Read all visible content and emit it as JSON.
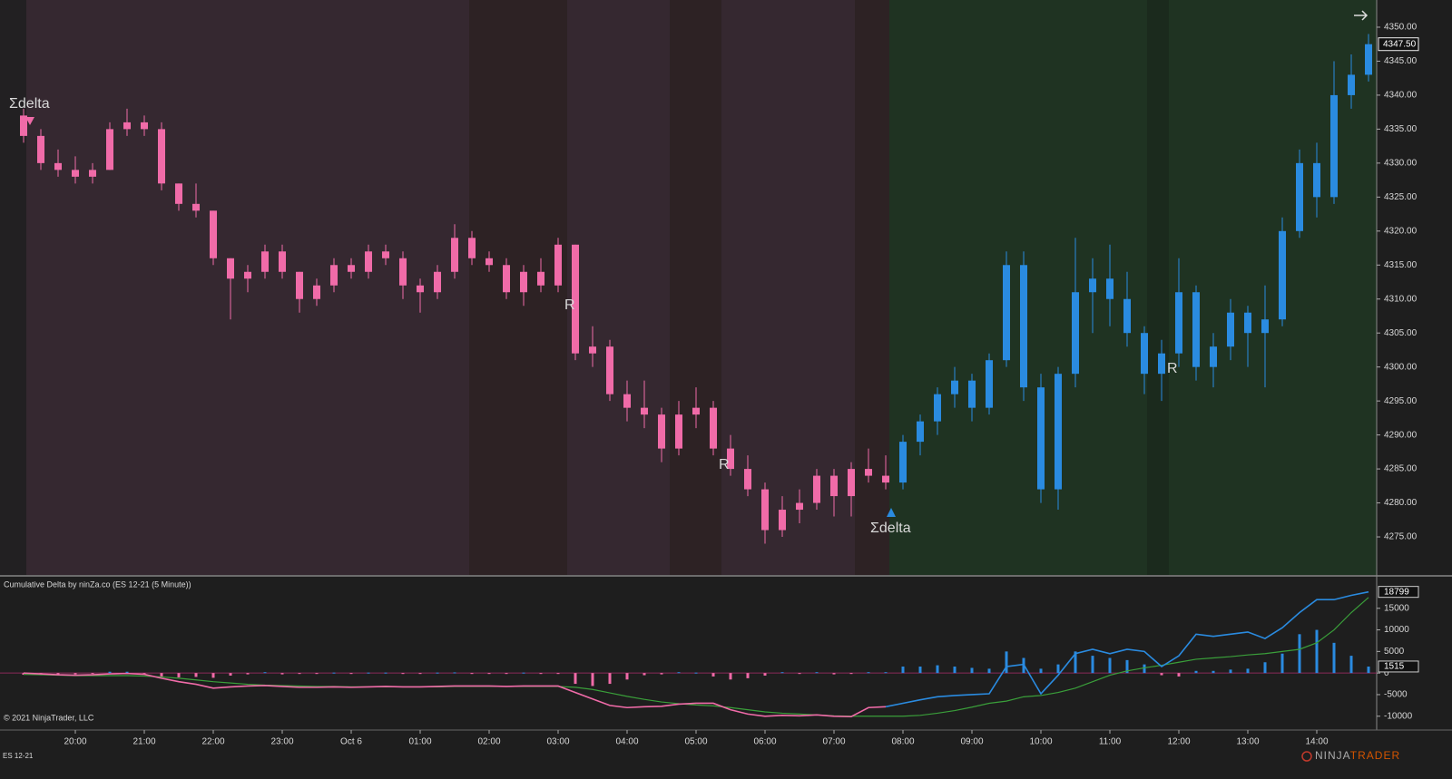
{
  "chart_data": [
    {
      "type": "candlestick",
      "open": [
        4337,
        4334,
        4330,
        4329,
        4328,
        4329,
        4335,
        4336,
        4335,
        4327,
        4324,
        4323,
        4316,
        4313,
        4314,
        4317,
        4314,
        4310,
        4312,
        4315,
        4314,
        4317,
        4316,
        4312,
        4311,
        4314,
        4319,
        4316,
        4315,
        4311,
        4314,
        4312,
        4318,
        4302,
        4303,
        4296,
        4294,
        4293,
        4288,
        4293,
        4294,
        4288,
        4285,
        4282,
        4276,
        4279,
        4280,
        4284,
        4281,
        4285,
        4284,
        4283,
        4289,
        4292,
        4296,
        4298,
        4294,
        4301,
        4315,
        4297,
        4282,
        4299,
        4311,
        4313,
        4310,
        4305,
        4299,
        4302,
        4311,
        4300,
        4303,
        4308,
        4305,
        4307,
        4320,
        4330,
        4325,
        4340,
        4343
      ],
      "high": [
        4338,
        4335,
        4332,
        4331,
        4330,
        4336,
        4338,
        4337,
        4336,
        4327,
        4327,
        4323,
        4316,
        4315,
        4318,
        4318,
        4314,
        4313,
        4316,
        4316,
        4318,
        4318,
        4317,
        4313,
        4315,
        4321,
        4320,
        4317,
        4316,
        4315,
        4316,
        4319,
        4318,
        4306,
        4304,
        4298,
        4298,
        4294,
        4295,
        4297,
        4295,
        4290,
        4287,
        4283,
        4281,
        4282,
        4285,
        4285,
        4286,
        4288,
        4287,
        4290,
        4293,
        4297,
        4300,
        4299,
        4302,
        4317,
        4317,
        4299,
        4300,
        4319,
        4316,
        4318,
        4314,
        4306,
        4304,
        4316,
        4312,
        4305,
        4310,
        4309,
        4312,
        4322,
        4332,
        4333,
        4345,
        4346,
        4349
      ],
      "low": [
        4333,
        4329,
        4328,
        4327,
        4327,
        4329,
        4334,
        4334,
        4326,
        4323,
        4322,
        4315,
        4307,
        4311,
        4313,
        4313,
        4308,
        4309,
        4311,
        4313,
        4313,
        4315,
        4310,
        4308,
        4310,
        4313,
        4315,
        4314,
        4310,
        4309,
        4311,
        4311,
        4301,
        4300,
        4295,
        4292,
        4291,
        4286,
        4287,
        4291,
        4287,
        4284,
        4281,
        4274,
        4275,
        4277,
        4279,
        4278,
        4278,
        4283,
        4282,
        4282,
        4287,
        4290,
        4294,
        4292,
        4293,
        4300,
        4295,
        4280,
        4279,
        4297,
        4305,
        4306,
        4303,
        4296,
        4295,
        4300,
        4298,
        4297,
        4301,
        4300,
        4297,
        4306,
        4319,
        4322,
        4324,
        4338,
        4342
      ],
      "close": [
        4334,
        4330,
        4329,
        4328,
        4329,
        4335,
        4336,
        4335,
        4327,
        4324,
        4323,
        4316,
        4313,
        4314,
        4317,
        4314,
        4310,
        4312,
        4315,
        4314,
        4317,
        4316,
        4312,
        4311,
        4314,
        4319,
        4316,
        4315,
        4311,
        4314,
        4312,
        4318,
        4302,
        4303,
        4296,
        4294,
        4293,
        4288,
        4293,
        4294,
        4288,
        4285,
        4282,
        4276,
        4279,
        4280,
        4284,
        4281,
        4285,
        4284,
        4283,
        4289,
        4292,
        4296,
        4298,
        4294,
        4301,
        4315,
        4297,
        4282,
        4299,
        4311,
        4313,
        4310,
        4305,
        4299,
        4302,
        4311,
        4300,
        4303,
        4308,
        4305,
        4307,
        4320,
        4330,
        4325,
        4340,
        4343,
        4347.5
      ],
      "colors": [
        "#f06ba8",
        "#f06ba8",
        "#f06ba8",
        "#f06ba8",
        "#f06ba8",
        "#f06ba8",
        "#f06ba8",
        "#f06ba8",
        "#f06ba8",
        "#f06ba8",
        "#f06ba8",
        "#f06ba8",
        "#f06ba8",
        "#f06ba8",
        "#f06ba8",
        "#f06ba8",
        "#f06ba8",
        "#f06ba8",
        "#f06ba8",
        "#f06ba8",
        "#f06ba8",
        "#f06ba8",
        "#f06ba8",
        "#f06ba8",
        "#f06ba8",
        "#f06ba8",
        "#f06ba8",
        "#f06ba8",
        "#f06ba8",
        "#f06ba8",
        "#f06ba8",
        "#f06ba8",
        "#f06ba8",
        "#f06ba8",
        "#f06ba8",
        "#f06ba8",
        "#f06ba8",
        "#f06ba8",
        "#f06ba8",
        "#f06ba8",
        "#f06ba8",
        "#f06ba8",
        "#f06ba8",
        "#f06ba8",
        "#f06ba8",
        "#f06ba8",
        "#f06ba8",
        "#f06ba8",
        "#f06ba8",
        "#f06ba8",
        "#f06ba8",
        "#2a8be0",
        "#2a8be0",
        "#2a8be0",
        "#2a8be0",
        "#2a8be0",
        "#2a8be0",
        "#2a8be0",
        "#2a8be0",
        "#2a8be0",
        "#2a8be0",
        "#2a8be0",
        "#2a8be0",
        "#2a8be0",
        "#2a8be0",
        "#2a8be0",
        "#2a8be0",
        "#2a8be0",
        "#2a8be0",
        "#2a8be0",
        "#2a8be0",
        "#2a8be0",
        "#2a8be0",
        "#2a8be0",
        "#2a8be0",
        "#2a8be0",
        "#2a8be0",
        "#2a8be0",
        "#2a8be0"
      ],
      "ylim": [
        4269.4,
        4354.0
      ],
      "yticks": [
        {
          "value": 4275,
          "label": "4275.00"
        },
        {
          "value": 4280,
          "label": "4280.00"
        },
        {
          "value": 4285,
          "label": "4285.00"
        },
        {
          "value": 4290,
          "label": "4290.00"
        },
        {
          "value": 4295,
          "label": "4295.00"
        },
        {
          "value": 4300,
          "label": "4300.00"
        },
        {
          "value": 4305,
          "label": "4305.00"
        },
        {
          "value": 4310,
          "label": "4310.00"
        },
        {
          "value": 4315,
          "label": "4315.00"
        },
        {
          "value": 4320,
          "label": "4320.00"
        },
        {
          "value": 4325,
          "label": "4325.00"
        },
        {
          "value": 4330,
          "label": "4330.00"
        },
        {
          "value": 4335,
          "label": "4335.00"
        },
        {
          "value": 4340,
          "label": "4340.00"
        },
        {
          "value": 4345,
          "label": "4345.00"
        },
        {
          "value": 4350,
          "label": "4350.00"
        }
      ],
      "last_price": {
        "value": 4347.5,
        "label": "4347.50"
      },
      "annotations": [
        {
          "text": "Σdelta",
          "color": "#f06ba8"
        },
        {
          "text": "R",
          "color": "#f06ba8"
        },
        {
          "text": "R",
          "color": "#f06ba8"
        },
        {
          "text": "Σdelta",
          "color": "#2a8be0"
        },
        {
          "text": "R",
          "color": "#2a8be0"
        }
      ]
    },
    {
      "type": "indicator",
      "title": "Cumulative Delta by ninZa.co (ES 12-21 (5 Minute))",
      "categories": [
        null,
        null,
        null,
        "20:00",
        null,
        null,
        null,
        "21:00",
        null,
        null,
        null,
        "22:00",
        null,
        null,
        null,
        "23:00",
        null,
        null,
        null,
        "Oct 6",
        null,
        null,
        null,
        "01:00",
        null,
        null,
        null,
        "02:00",
        null,
        null,
        null,
        "03:00",
        null,
        null,
        null,
        "04:00",
        null,
        null,
        null,
        "05:00",
        null,
        null,
        null,
        "06:00",
        null,
        null,
        null,
        "07:00",
        null,
        null,
        null,
        "08:00",
        null,
        null,
        null,
        "09:00",
        null,
        null,
        null,
        "10:00",
        null,
        null,
        null,
        "11:00",
        null,
        null,
        null,
        "12:00",
        null,
        null,
        null,
        "13:00",
        null,
        null,
        null,
        "14:00",
        null,
        null,
        null
      ],
      "delta": [
        0,
        -200,
        -400,
        -500,
        -400,
        -200,
        -100,
        -300,
        -1200,
        -2000,
        -2600,
        -3500,
        -3200,
        -3000,
        -2900,
        -3100,
        -3300,
        -3300,
        -3200,
        -3300,
        -3200,
        -3100,
        -3200,
        -3200,
        -3100,
        -3000,
        -3000,
        -3000,
        -3100,
        -3000,
        -3000,
        -3000,
        -4500,
        -6000,
        -7500,
        -8000,
        -7800,
        -7700,
        -7200,
        -7000,
        -7000,
        -8500,
        -9500,
        -10000,
        -9800,
        -9900,
        -9700,
        -10000,
        -10100,
        -8000,
        -7800,
        -7000,
        -6200,
        -5500,
        -5200,
        -5000,
        -4800,
        1500,
        2000,
        -4800,
        -500,
        4500,
        5500,
        4500,
        5500,
        5000,
        1500,
        4000,
        9000,
        8500,
        9000,
        9500,
        8000,
        10500,
        14000,
        17000,
        17000,
        18000,
        18799
      ],
      "smooth": {
        "color": "#3a9f3a",
        "values": [
          -300,
          -400,
          -500,
          -600,
          -600,
          -600,
          -600,
          -700,
          -900,
          -1200,
          -1600,
          -2000,
          -2300,
          -2600,
          -2800,
          -2900,
          -3000,
          -3100,
          -3100,
          -3200,
          -3200,
          -3200,
          -3200,
          -3200,
          -3200,
          -3100,
          -3100,
          -3100,
          -3100,
          -3100,
          -3100,
          -3100,
          -3300,
          -3800,
          -4600,
          -5400,
          -6100,
          -6700,
          -7100,
          -7400,
          -7600,
          -8000,
          -8500,
          -9000,
          -9300,
          -9500,
          -9700,
          -9900,
          -10000,
          -10000,
          -10000,
          -10000,
          -9800,
          -9300,
          -8700,
          -7900,
          -7000,
          -6500,
          -5500,
          -5200,
          -4500,
          -3500,
          -2000,
          -500,
          500,
          1200,
          1800,
          2500,
          3200,
          3500,
          3800,
          4200,
          4500,
          5000,
          5500,
          7000,
          10000,
          14000,
          17500
        ]
      },
      "histogram": {
        "up_color": "#2a8be0",
        "down_color": "#f06ba8",
        "values": [
          -400,
          -500,
          -400,
          -300,
          -200,
          300,
          300,
          -200,
          -800,
          -1000,
          -900,
          -1100,
          -600,
          -300,
          200,
          -300,
          -200,
          -100,
          100,
          -100,
          100,
          100,
          -200,
          -100,
          100,
          150,
          -100,
          -100,
          -150,
          100,
          -100,
          -100,
          -2500,
          -3000,
          -2500,
          -1500,
          -500,
          -300,
          200,
          100,
          -800,
          -1500,
          -1200,
          -600,
          200,
          -100,
          200,
          -300,
          -100,
          200,
          200,
          1500,
          1500,
          1800,
          1500,
          1200,
          1000,
          5000,
          3500,
          1000,
          2000,
          5000,
          4000,
          3500,
          3000,
          2000,
          -500,
          -800,
          500,
          500,
          800,
          1000,
          2500,
          4500,
          9000,
          10000,
          7000,
          4000,
          1500
        ]
      },
      "ylim": [
        -13200,
        22300
      ],
      "yticks": [
        -10000,
        -5000,
        0,
        5000,
        10000,
        15000
      ],
      "markers": [
        18799,
        1515
      ],
      "copyright": "© 2021 NinjaTrader, LLC"
    }
  ],
  "footer": {
    "instrument": "ES 12-21",
    "brand_1": "NINJA",
    "brand_2": "TRADER"
  }
}
